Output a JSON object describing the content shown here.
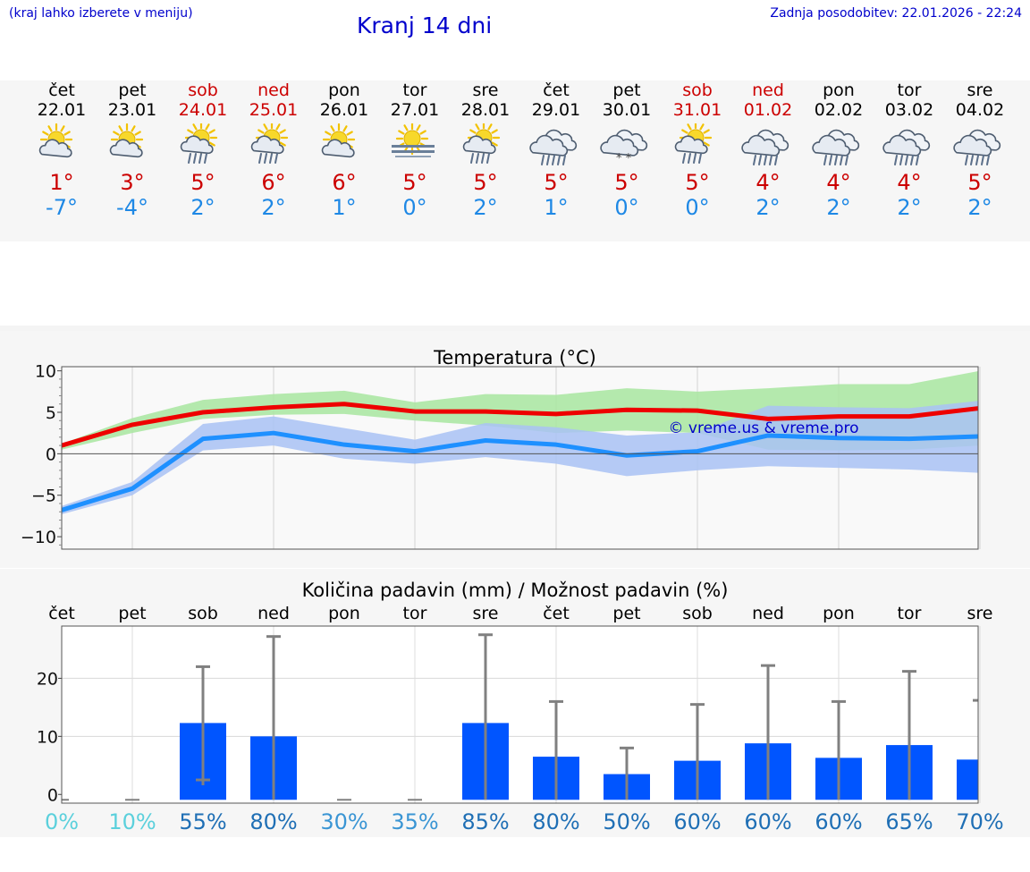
{
  "header": {
    "hint": "(kraj lahko izberete v meniju)",
    "title": "Kranj 14 dni",
    "updated": "Zadnja posodobitev: 22.01.2026 - 22:24"
  },
  "days": [
    {
      "name": "čet",
      "date": "22.01",
      "weekend": false,
      "icon": "partly-cloudy-sun-icon",
      "max": "1°",
      "min": "-7°"
    },
    {
      "name": "pet",
      "date": "23.01",
      "weekend": false,
      "icon": "partly-cloudy-sun-icon",
      "max": "3°",
      "min": "-4°"
    },
    {
      "name": "sob",
      "date": "24.01",
      "weekend": true,
      "icon": "sun-cloud-rain-icon",
      "max": "5°",
      "min": "2°"
    },
    {
      "name": "ned",
      "date": "25.01",
      "weekend": true,
      "icon": "sun-cloud-rain-icon",
      "max": "6°",
      "min": "2°"
    },
    {
      "name": "pon",
      "date": "26.01",
      "weekend": false,
      "icon": "partly-cloudy-sun-icon",
      "max": "6°",
      "min": "1°"
    },
    {
      "name": "tor",
      "date": "27.01",
      "weekend": false,
      "icon": "sun-fog-icon",
      "max": "5°",
      "min": "0°"
    },
    {
      "name": "sre",
      "date": "28.01",
      "weekend": false,
      "icon": "sun-cloud-rain-icon",
      "max": "5°",
      "min": "2°"
    },
    {
      "name": "čet",
      "date": "29.01",
      "weekend": false,
      "icon": "cloud-rain-icon",
      "max": "5°",
      "min": "1°"
    },
    {
      "name": "pet",
      "date": "30.01",
      "weekend": false,
      "icon": "cloud-snow-icon",
      "max": "5°",
      "min": "0°"
    },
    {
      "name": "sob",
      "date": "31.01",
      "weekend": true,
      "icon": "sun-cloud-rain-icon",
      "max": "5°",
      "min": "0°"
    },
    {
      "name": "ned",
      "date": "01.02",
      "weekend": true,
      "icon": "cloud-rain-icon",
      "max": "4°",
      "min": "2°"
    },
    {
      "name": "pon",
      "date": "02.02",
      "weekend": false,
      "icon": "cloud-rain-icon",
      "max": "4°",
      "min": "2°"
    },
    {
      "name": "tor",
      "date": "03.02",
      "weekend": false,
      "icon": "cloud-rain-icon",
      "max": "4°",
      "min": "2°"
    },
    {
      "name": "sre",
      "date": "04.02",
      "weekend": false,
      "icon": "cloud-rain-icon",
      "max": "5°",
      "min": "2°"
    }
  ],
  "colors": {
    "max_line": "#ee0000",
    "min_line": "#1e90ff",
    "max_band": "#a8e6a0",
    "min_band": "#a9c2f5",
    "overlap_band": "#72bfae",
    "precip_bar": "#0055ff",
    "error_bar": "#808080",
    "weekend_text": "#cc0000",
    "watermark": "#0000cc"
  },
  "chart_data": [
    {
      "type": "line",
      "title": "Temperatura (°C)",
      "watermark": "© vreme.us & vreme.pro",
      "x": [
        0,
        1,
        2,
        3,
        4,
        5,
        6,
        7,
        8,
        9,
        10,
        11,
        12,
        13
      ],
      "ylim": [
        -11.5,
        10.5
      ],
      "yticks": [
        10,
        5,
        0,
        -5,
        -10
      ],
      "ytick_labels": [
        "10",
        "5",
        "0",
        "−5",
        "−10"
      ],
      "series": [
        {
          "name": "max",
          "values": [
            1,
            3.5,
            5,
            5.6,
            6,
            5.1,
            5.1,
            4.8,
            5.3,
            5.2,
            4.2,
            4.5,
            4.5,
            5.5
          ]
        },
        {
          "name": "min",
          "values": [
            -6.8,
            -4.2,
            1.8,
            2.5,
            1.1,
            0.3,
            1.6,
            1.1,
            -0.2,
            0.3,
            2.2,
            1.9,
            1.8,
            2.1
          ]
        }
      ],
      "bands": [
        {
          "name": "max-range",
          "low": [
            0.5,
            2.5,
            4.2,
            4.7,
            4.8,
            4.0,
            3.4,
            2.5,
            2.8,
            2.5,
            0.5,
            0.4,
            0.5,
            1.0
          ],
          "high": [
            1.2,
            4.3,
            6.5,
            7.2,
            7.6,
            6.2,
            7.2,
            7.1,
            7.9,
            7.5,
            7.9,
            8.4,
            8.4,
            10.0
          ]
        },
        {
          "name": "min-range",
          "low": [
            -7.3,
            -5.0,
            0.4,
            1.0,
            -0.6,
            -1.2,
            -0.4,
            -1.2,
            -2.7,
            -2.0,
            -1.5,
            -1.7,
            -1.9,
            -2.3
          ],
          "high": [
            -6.3,
            -3.4,
            3.6,
            4.5,
            3.1,
            1.7,
            3.7,
            3.2,
            2.2,
            2.6,
            5.8,
            5.6,
            5.5,
            6.4
          ]
        }
      ]
    },
    {
      "type": "bar",
      "title": "Količina padavin (mm) / Možnost padavin (%)",
      "categories": [
        "čet",
        "pet",
        "sob",
        "ned",
        "pon",
        "tor",
        "sre",
        "čet",
        "pet",
        "sob",
        "ned",
        "pon",
        "tor",
        "sre"
      ],
      "ylim": [
        -1.5,
        29
      ],
      "yticks": [
        20,
        10,
        0
      ],
      "ytick_labels": [
        "20",
        "10",
        "0"
      ],
      "values": [
        0,
        0,
        12.3,
        10,
        0,
        0,
        12.3,
        6.5,
        3.5,
        5.8,
        8.8,
        6.3,
        8.5,
        6
      ],
      "error_low": [
        0,
        0,
        2.5,
        0,
        0,
        0,
        0,
        0,
        0,
        0,
        0,
        0,
        0,
        0
      ],
      "error_high": [
        0,
        0,
        22,
        27.2,
        0,
        0,
        27.5,
        16,
        8,
        15.5,
        22.2,
        16,
        21.2,
        16.2
      ],
      "probability": [
        "0%",
        "10%",
        "55%",
        "80%",
        "30%",
        "35%",
        "85%",
        "80%",
        "50%",
        "60%",
        "60%",
        "60%",
        "65%",
        "70%"
      ],
      "probability_colors": [
        "#5bd0dc",
        "#5bd0dc",
        "#1f6fb5",
        "#1f6fb5",
        "#3a95d4",
        "#3a95d4",
        "#1f6fb5",
        "#1f6fb5",
        "#1f6fb5",
        "#1f6fb5",
        "#1f6fb5",
        "#1f6fb5",
        "#1f6fb5",
        "#1f6fb5"
      ]
    }
  ]
}
